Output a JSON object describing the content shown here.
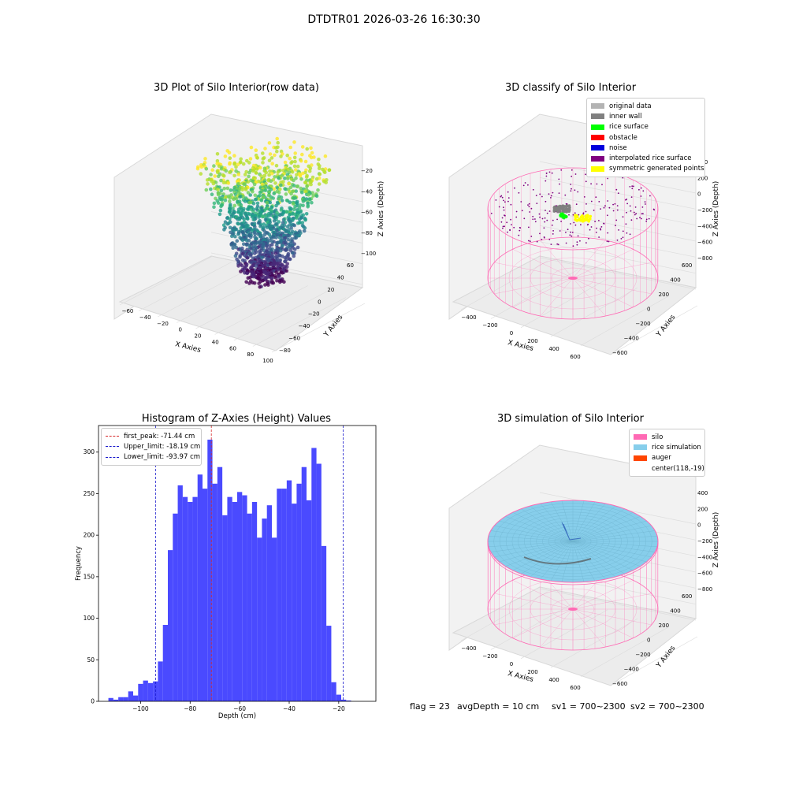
{
  "figure": {
    "suptitle": "DTDTR01 2026-03-26 16:30:30",
    "footer": {
      "flag": "flag = 23",
      "avg_depth": "avgDepth = 10 cm",
      "sv1": "sv1 = 700~2300",
      "sv2": "sv2 = 700~2300"
    }
  },
  "colors": {
    "histogram_bar": "#4a4aff",
    "first_peak_line": "#d62728",
    "limit_line": "#1a1acc",
    "silo_wire": "#ff69b4",
    "rice_simulation": "#87ceeb",
    "auger": "#ff4500",
    "original_data": "#b3b3b3",
    "inner_wall": "#808080",
    "rice_surface": "#00ff00",
    "obstacle": "#ff0000",
    "noise": "#0000dd",
    "interpolated_rice_surface": "#800080",
    "symmetric_generated_points": "#ffff00"
  },
  "chart_data": [
    {
      "type": "scatter",
      "projection": "3d",
      "title": "3D Plot of Silo Interior(row data)",
      "xlabel": "X Axies",
      "ylabel": "Y Axies",
      "zlabel": "Z Axies (Depth)",
      "x_ticks": [
        "−60",
        "−40",
        "−20",
        "0",
        "20",
        "40",
        "60",
        "80",
        "100"
      ],
      "y_ticks": [
        "−80",
        "−60",
        "−40",
        "−20",
        "0",
        "20",
        "40",
        "60"
      ],
      "z_ticks": [
        "−100",
        "−80",
        "−60",
        "−40",
        "−20"
      ],
      "xlim": [
        -70,
        105
      ],
      "ylim": [
        -90,
        70
      ],
      "zlim": [
        -115,
        -10
      ],
      "colormap": "viridis",
      "grid": true
    },
    {
      "type": "scatter",
      "projection": "3d",
      "title": "3D classify of Silo Interior",
      "xlabel": "X Axies",
      "ylabel": "Y Axies",
      "zlabel": "Z Axies (Depth)",
      "x_ticks": [
        "−400",
        "−200",
        "0",
        "200",
        "400",
        "600"
      ],
      "y_ticks": [
        "−600",
        "−400",
        "−200",
        "0",
        "200",
        "400",
        "600"
      ],
      "z_ticks": [
        "−800",
        "−600",
        "−400",
        "−200",
        "0",
        "200",
        "400"
      ],
      "legend": {
        "position": "upper-right",
        "entries": [
          {
            "label": "original data",
            "color": "#b3b3b3"
          },
          {
            "label": "inner wall",
            "color": "#808080"
          },
          {
            "label": "rice surface",
            "color": "#00ff00"
          },
          {
            "label": "obstacle",
            "color": "#ff0000"
          },
          {
            "label": "noise",
            "color": "#0000dd"
          },
          {
            "label": "interpolated rice surface",
            "color": "#800080"
          },
          {
            "label": "symmetric generated points",
            "color": "#ffff00"
          }
        ]
      },
      "grid": true
    },
    {
      "type": "bar",
      "subtype": "histogram",
      "title": "Histogram of Z-Axies (Height) Values",
      "xlabel": "Depth (cm)",
      "ylabel": "Frequency",
      "xlim": [
        -117,
        -5
      ],
      "ylim": [
        0,
        332
      ],
      "x_ticks": [
        -100,
        -80,
        -60,
        -40,
        -20
      ],
      "y_ticks": [
        0,
        50,
        100,
        150,
        200,
        250,
        300
      ],
      "bin_edges_start": -113,
      "bin_width": 2,
      "counts": [
        4,
        2,
        5,
        5,
        12,
        7,
        21,
        25,
        22,
        24,
        48,
        92,
        182,
        226,
        260,
        246,
        240,
        246,
        273,
        256,
        315,
        262,
        282,
        224,
        246,
        240,
        252,
        248,
        226,
        240,
        197,
        220,
        236,
        197,
        256,
        256,
        266,
        238,
        262,
        282,
        242,
        305,
        286,
        187,
        91,
        23,
        8,
        2,
        1
      ],
      "vlines": [
        {
          "label": "first_peak: -71.44 cm",
          "x": -71.44,
          "color": "#d62728"
        },
        {
          "label": "Upper_limit: -18.19 cm",
          "x": -18.19,
          "color": "#1a1acc"
        },
        {
          "label": "Lower_limit: -93.97 cm",
          "x": -93.97,
          "color": "#1a1acc"
        }
      ],
      "legend": "upper-left",
      "grid": false
    },
    {
      "type": "area",
      "projection": "3d",
      "title": "3D simulation of Silo Interior",
      "xlabel": "X Axies",
      "ylabel": "Y Axies",
      "zlabel": "Z Axies (Depth)",
      "x_ticks": [
        "−400",
        "−200",
        "0",
        "200",
        "400",
        "600"
      ],
      "y_ticks": [
        "−600",
        "−400",
        "−200",
        "0",
        "200",
        "400",
        "600"
      ],
      "z_ticks": [
        "−800",
        "−600",
        "−400",
        "−200",
        "0",
        "200",
        "400"
      ],
      "legend": {
        "position": "upper-right",
        "entries": [
          {
            "label": "silo",
            "color": "#ff69b4"
          },
          {
            "label": "rice simulation",
            "color": "#87ceeb"
          },
          {
            "label": "auger",
            "color": "#ff4500"
          },
          {
            "label": "center(118,-19)",
            "color": ""
          }
        ]
      },
      "grid": true
    }
  ]
}
